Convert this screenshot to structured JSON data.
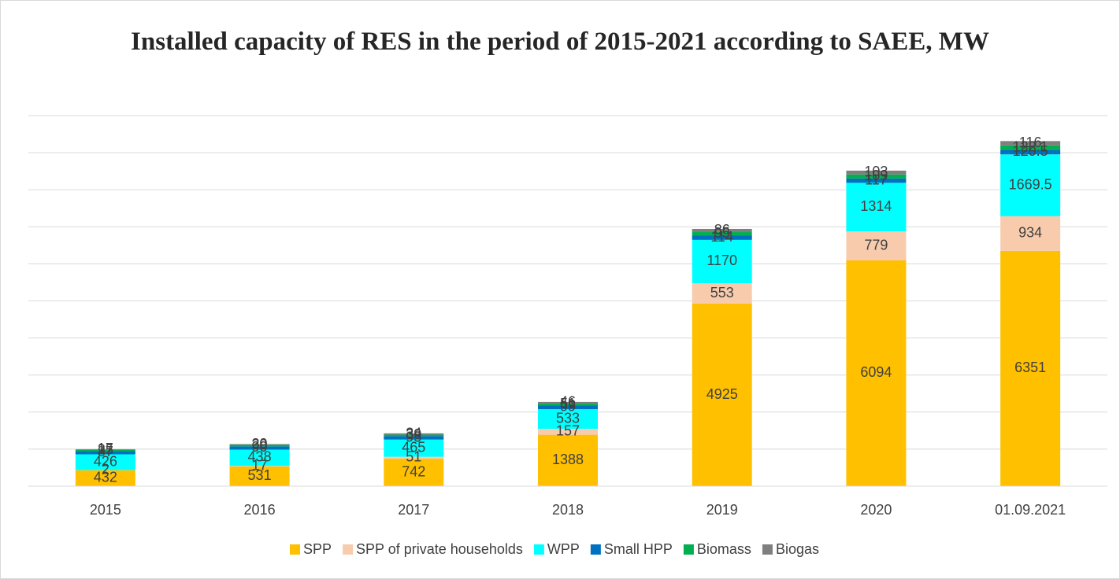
{
  "chart_data": {
    "type": "stacked_bar",
    "title": "Installed capacity of RES in the period of 2015-2021 according to SAEE, MW",
    "categories": [
      "2015",
      "2016",
      "2017",
      "2018",
      "2019",
      "2020",
      "01.09.2021"
    ],
    "series": [
      {
        "name": "SPP",
        "color": "#ffc000",
        "values": [
          432,
          531,
          742,
          1388,
          4925,
          6094,
          6351
        ]
      },
      {
        "name": "SPP of private households",
        "color": "#f8cbad",
        "values": [
          2,
          17,
          51,
          157,
          553,
          779,
          934
        ]
      },
      {
        "name": "WPP",
        "color": "#00ffff",
        "values": [
          426,
          438,
          465,
          533,
          1170,
          1314,
          1669.5
        ]
      },
      {
        "name": "Small HPP",
        "color": "#0070c0",
        "values": [
          87,
          90,
          95,
          99,
          114,
          117,
          120.5
        ]
      },
      {
        "name": "Biomass",
        "color": "#00b050",
        "values": [
          35,
          39,
          39,
          51,
          95,
          109,
          122.1
        ]
      },
      {
        "name": "Biogas",
        "color": "#7f7f7f",
        "values": [
          17,
          20,
          34,
          46,
          86,
          103,
          116
        ]
      }
    ],
    "ylim": [
      0,
      10000
    ],
    "yticks": [
      0,
      1000,
      2000,
      3000,
      4000,
      5000,
      6000,
      7000,
      8000,
      9000,
      10000
    ],
    "grid": true,
    "legend": "bottom"
  }
}
